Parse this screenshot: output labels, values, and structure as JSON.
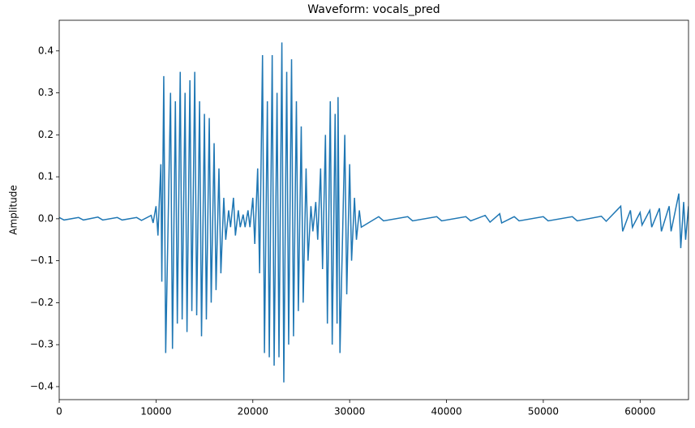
{
  "chart_data": {
    "type": "line",
    "title": "Waveform: vocals_pred",
    "y_label": "Amplitude",
    "color": "#1f77b4",
    "x": [
      0,
      500,
      2000,
      2500,
      4000,
      4500,
      6000,
      6500,
      8000,
      8500,
      9500,
      9700,
      10000,
      10200,
      10500,
      10600,
      10800,
      11000,
      11500,
      11700,
      12000,
      12200,
      12500,
      12700,
      13000,
      13200,
      13500,
      13700,
      14000,
      14200,
      14500,
      14700,
      15000,
      15200,
      15500,
      15700,
      16000,
      16200,
      16500,
      16700,
      17000,
      17200,
      17500,
      17700,
      18000,
      18200,
      18500,
      18700,
      19000,
      19200,
      19500,
      19700,
      20000,
      20200,
      20500,
      20700,
      21000,
      21200,
      21500,
      21700,
      22000,
      22200,
      22500,
      22700,
      23000,
      23200,
      23500,
      23700,
      24000,
      24200,
      24500,
      24700,
      25000,
      25200,
      25500,
      25700,
      26000,
      26200,
      26500,
      26700,
      27000,
      27200,
      27500,
      27700,
      28000,
      28200,
      28500,
      28700,
      28800,
      29000,
      29500,
      29700,
      30000,
      30200,
      30500,
      30700,
      31000,
      31200,
      33000,
      33500,
      36000,
      36500,
      39000,
      39500,
      42000,
      42500,
      44000,
      44500,
      45500,
      45700,
      47000,
      47500,
      50000,
      50500,
      53000,
      53500,
      56000,
      56500,
      58000,
      58200,
      59000,
      59200,
      60000,
      60200,
      61000,
      61200,
      62000,
      62200,
      63000,
      63200,
      64000,
      64200,
      64500,
      64700,
      65000
    ],
    "values": [
      0.003,
      -0.003,
      0.003,
      -0.003,
      0.004,
      -0.003,
      0.003,
      -0.003,
      0.003,
      -0.004,
      0.008,
      -0.01,
      0.03,
      -0.04,
      0.13,
      -0.15,
      0.34,
      -0.32,
      0.3,
      -0.31,
      0.28,
      -0.25,
      0.35,
      -0.24,
      0.3,
      -0.27,
      0.33,
      -0.22,
      0.35,
      -0.23,
      0.28,
      -0.28,
      0.25,
      -0.24,
      0.24,
      -0.2,
      0.18,
      -0.17,
      0.12,
      -0.13,
      0.05,
      -0.05,
      0.02,
      -0.02,
      0.05,
      -0.04,
      0.02,
      -0.02,
      0.01,
      -0.02,
      0.02,
      -0.02,
      0.05,
      -0.06,
      0.12,
      -0.13,
      0.39,
      -0.32,
      0.28,
      -0.33,
      0.39,
      -0.35,
      0.3,
      -0.33,
      0.42,
      -0.39,
      0.35,
      -0.3,
      0.38,
      -0.28,
      0.28,
      -0.22,
      0.22,
      -0.2,
      0.12,
      -0.1,
      0.03,
      -0.03,
      0.04,
      -0.05,
      0.12,
      -0.12,
      0.2,
      -0.25,
      0.28,
      -0.3,
      0.25,
      -0.25,
      0.29,
      -0.32,
      0.2,
      -0.18,
      0.13,
      -0.1,
      0.05,
      -0.05,
      0.02,
      -0.02,
      0.005,
      -0.005,
      0.005,
      -0.005,
      0.005,
      -0.005,
      0.005,
      -0.005,
      0.008,
      -0.008,
      0.012,
      -0.01,
      0.005,
      -0.005,
      0.005,
      -0.005,
      0.005,
      -0.005,
      0.006,
      -0.006,
      0.03,
      -0.03,
      0.02,
      -0.02,
      0.015,
      -0.015,
      0.02,
      -0.02,
      0.025,
      -0.03,
      0.03,
      -0.03,
      0.06,
      -0.07,
      0.04,
      -0.05,
      0.03
    ],
    "xlim": [
      0,
      65000
    ],
    "xticks": [
      0,
      10000,
      20000,
      30000,
      40000,
      50000,
      60000
    ],
    "ylim": [
      -0.431,
      0.473
    ],
    "yticks": [
      {
        "value": -0.4,
        "label": "−0.4"
      },
      {
        "value": -0.3,
        "label": "−0.3"
      },
      {
        "value": -0.2,
        "label": "−0.2"
      },
      {
        "value": -0.1,
        "label": "−0.1"
      },
      {
        "value": 0,
        "label": "0.0"
      },
      0.1,
      0.2,
      0.3,
      0.4
    ],
    "grid": false
  }
}
